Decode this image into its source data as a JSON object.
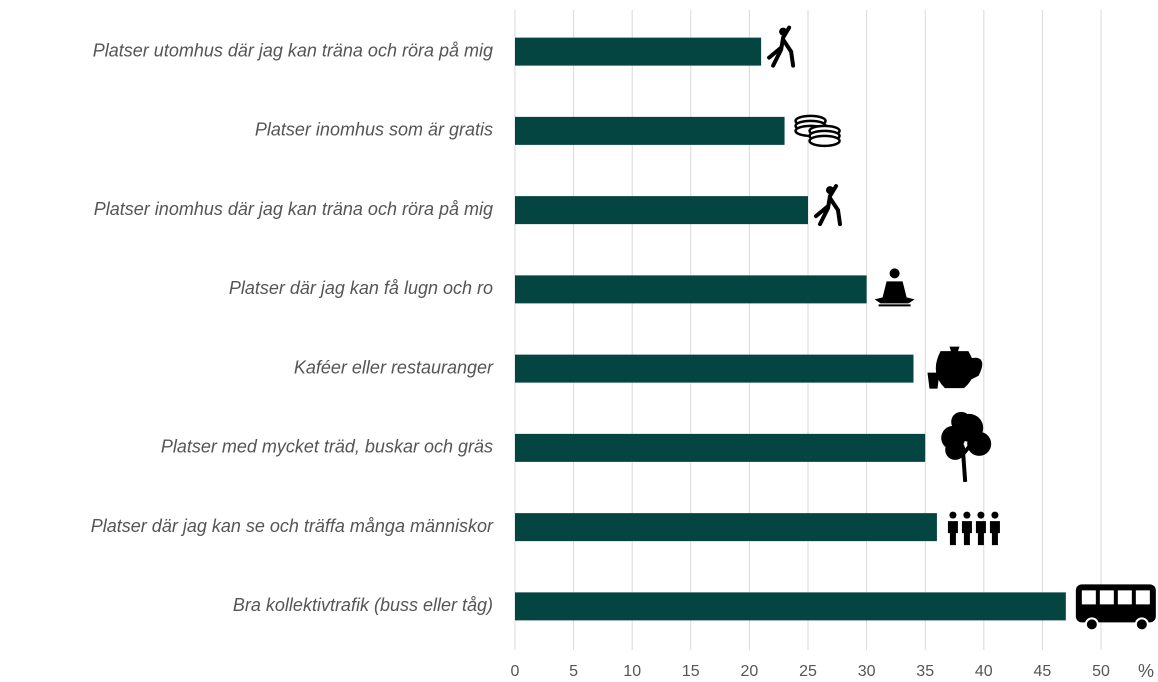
{
  "chart_data": {
    "type": "barh",
    "categories": [
      "Platser utomhus där jag kan träna och röra på mig",
      "Platser inomhus som är gratis",
      "Platser inomhus där jag kan träna och röra på mig",
      "Platser där jag kan få lugn och ro",
      "Kaféer eller restauranger",
      "Platser med mycket träd, buskar och gräs",
      "Platser där jag kan se och träffa många människor",
      "Bra kollektivtrafik (buss eller tåg)"
    ],
    "values": [
      21,
      23,
      25,
      30,
      34,
      35,
      36,
      47
    ],
    "color": "#044441",
    "xlabel": "%",
    "xlim": [
      0,
      50
    ],
    "xticks": [
      0,
      5,
      10,
      15,
      20,
      25,
      30,
      35,
      40,
      45,
      50
    ],
    "grid": true
  }
}
